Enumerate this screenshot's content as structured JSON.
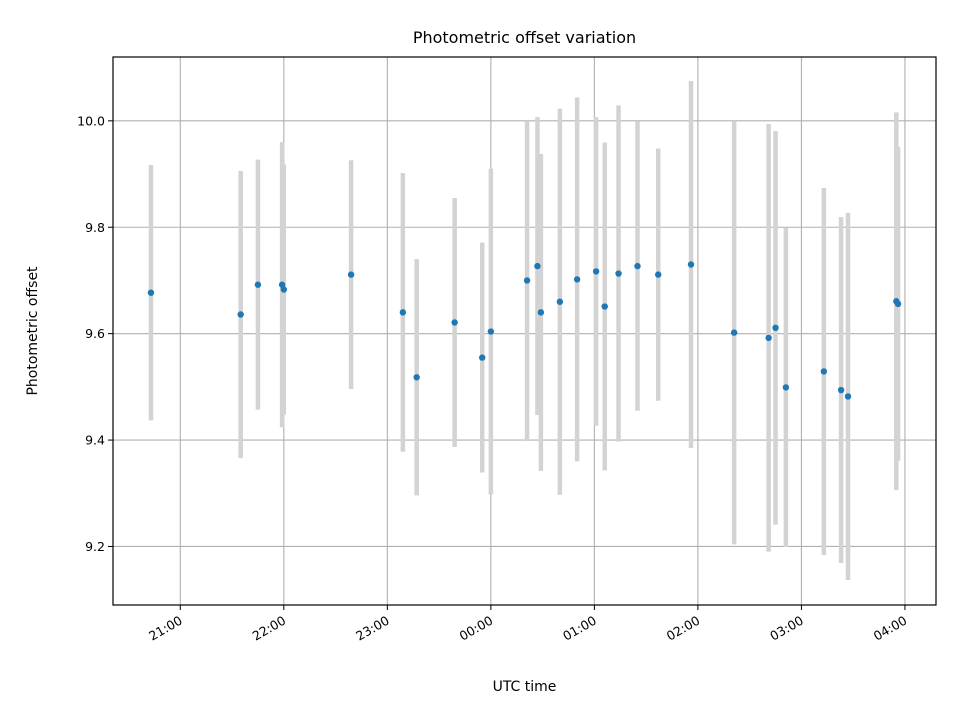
{
  "chart_data": {
    "type": "scatter",
    "title": "Photometric offset variation",
    "xlabel": "UTC time",
    "ylabel": "Photometric offset",
    "x_axis_format": "HH:MM",
    "x_range": [
      "2020-01-01T20:21",
      "2020-01-02T04:18"
    ],
    "ylim": [
      9.09,
      10.12
    ],
    "x_ticks": [
      {
        "t": "2020-01-01T21:00",
        "label": "21:00"
      },
      {
        "t": "2020-01-01T22:00",
        "label": "22:00"
      },
      {
        "t": "2020-01-01T23:00",
        "label": "23:00"
      },
      {
        "t": "2020-01-02T00:00",
        "label": "00:00"
      },
      {
        "t": "2020-01-02T01:00",
        "label": "01:00"
      },
      {
        "t": "2020-01-02T02:00",
        "label": "02:00"
      },
      {
        "t": "2020-01-02T03:00",
        "label": "03:00"
      },
      {
        "t": "2020-01-02T04:00",
        "label": "04:00"
      }
    ],
    "y_ticks": [
      {
        "v": 9.2,
        "label": "9.2"
      },
      {
        "v": 9.4,
        "label": "9.4"
      },
      {
        "v": 9.6,
        "label": "9.6"
      },
      {
        "v": 9.8,
        "label": "9.8"
      },
      {
        "v": 10.0,
        "label": "10.0"
      }
    ],
    "grid": true,
    "marker_color": "#1f77b4",
    "errorbar_color": "#d3d3d3",
    "points": [
      {
        "t": "2020-01-01T20:43",
        "y": 9.677,
        "err": 0.24
      },
      {
        "t": "2020-01-01T21:35",
        "y": 9.636,
        "err": 0.27
      },
      {
        "t": "2020-01-01T21:45",
        "y": 9.692,
        "err": 0.235
      },
      {
        "t": "2020-01-01T21:59",
        "y": 9.692,
        "err": 0.268
      },
      {
        "t": "2020-01-01T22:00",
        "y": 9.683,
        "err": 0.235
      },
      {
        "t": "2020-01-01T22:39",
        "y": 9.711,
        "err": 0.215
      },
      {
        "t": "2020-01-01T23:09",
        "y": 9.64,
        "err": 0.262
      },
      {
        "t": "2020-01-01T23:17",
        "y": 9.518,
        "err": 0.222
      },
      {
        "t": "2020-01-01T23:39",
        "y": 9.621,
        "err": 0.234
      },
      {
        "t": "2020-01-01T23:55",
        "y": 9.555,
        "err": 0.216
      },
      {
        "t": "2020-01-02T00:00",
        "y": 9.604,
        "err": 0.306
      },
      {
        "t": "2020-01-02T00:21",
        "y": 9.7,
        "err": 0.3
      },
      {
        "t": "2020-01-02T00:27",
        "y": 9.727,
        "err": 0.28
      },
      {
        "t": "2020-01-02T00:29",
        "y": 9.64,
        "err": 0.298
      },
      {
        "t": "2020-01-02T00:40",
        "y": 9.66,
        "err": 0.363
      },
      {
        "t": "2020-01-02T00:50",
        "y": 9.702,
        "err": 0.342
      },
      {
        "t": "2020-01-02T01:01",
        "y": 9.717,
        "err": 0.29
      },
      {
        "t": "2020-01-02T01:06",
        "y": 9.651,
        "err": 0.308
      },
      {
        "t": "2020-01-02T01:14",
        "y": 9.713,
        "err": 0.316
      },
      {
        "t": "2020-01-02T01:25",
        "y": 9.727,
        "err": 0.272
      },
      {
        "t": "2020-01-02T01:37",
        "y": 9.711,
        "err": 0.237
      },
      {
        "t": "2020-01-02T01:56",
        "y": 9.73,
        "err": 0.345
      },
      {
        "t": "2020-01-02T02:21",
        "y": 9.602,
        "err": 0.398
      },
      {
        "t": "2020-01-02T02:41",
        "y": 9.592,
        "err": 0.402
      },
      {
        "t": "2020-01-02T02:45",
        "y": 9.611,
        "err": 0.37
      },
      {
        "t": "2020-01-02T02:51",
        "y": 9.499,
        "err": 0.3
      },
      {
        "t": "2020-01-02T03:13",
        "y": 9.529,
        "err": 0.345
      },
      {
        "t": "2020-01-02T03:23",
        "y": 9.494,
        "err": 0.325
      },
      {
        "t": "2020-01-02T03:27",
        "y": 9.482,
        "err": 0.345
      },
      {
        "t": "2020-01-02T03:55",
        "y": 9.661,
        "err": 0.355
      },
      {
        "t": "2020-01-02T03:56",
        "y": 9.656,
        "err": 0.295
      }
    ]
  }
}
